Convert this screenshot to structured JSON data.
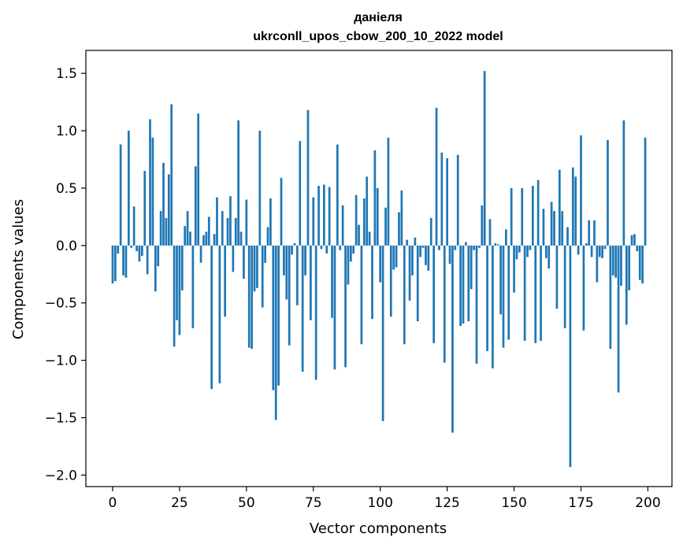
{
  "chart_data": {
    "type": "bar",
    "title": "даніеля",
    "subtitle": "ukrconll_upos_cbow_200_10_2022 model",
    "xlabel": "Vector components",
    "ylabel": "Components values",
    "xlim": [
      -10,
      209
    ],
    "ylim": [
      -2.1,
      1.7
    ],
    "xticks": [
      0,
      25,
      50,
      75,
      100,
      125,
      150,
      175,
      200
    ],
    "yticks": [
      1.5,
      1.0,
      0.5,
      0.0,
      -0.5,
      -1.0,
      -1.5,
      -2.0
    ],
    "ytick_labels": [
      "1.5",
      "1.0",
      "0.5",
      "0.0",
      "−0.5",
      "−1.0",
      "−1.5",
      "−2.0"
    ],
    "grid": false,
    "bar_color": "#1f77b4",
    "x": [
      0,
      1,
      2,
      3,
      4,
      5,
      6,
      7,
      8,
      9,
      10,
      11,
      12,
      13,
      14,
      15,
      16,
      17,
      18,
      19,
      20,
      21,
      22,
      23,
      24,
      25,
      26,
      27,
      28,
      29,
      30,
      31,
      32,
      33,
      34,
      35,
      36,
      37,
      38,
      39,
      40,
      41,
      42,
      43,
      44,
      45,
      46,
      47,
      48,
      49,
      50,
      51,
      52,
      53,
      54,
      55,
      56,
      57,
      58,
      59,
      60,
      61,
      62,
      63,
      64,
      65,
      66,
      67,
      68,
      69,
      70,
      71,
      72,
      73,
      74,
      75,
      76,
      77,
      78,
      79,
      80,
      81,
      82,
      83,
      84,
      85,
      86,
      87,
      88,
      89,
      90,
      91,
      92,
      93,
      94,
      95,
      96,
      97,
      98,
      99,
      100,
      101,
      102,
      103,
      104,
      105,
      106,
      107,
      108,
      109,
      110,
      111,
      112,
      113,
      114,
      115,
      116,
      117,
      118,
      119,
      120,
      121,
      122,
      123,
      124,
      125,
      126,
      127,
      128,
      129,
      130,
      131,
      132,
      133,
      134,
      135,
      136,
      137,
      138,
      139,
      140,
      141,
      142,
      143,
      144,
      145,
      146,
      147,
      148,
      149,
      150,
      151,
      152,
      153,
      154,
      155,
      156,
      157,
      158,
      159,
      160,
      161,
      162,
      163,
      164,
      165,
      166,
      167,
      168,
      169,
      170,
      171,
      172,
      173,
      174,
      175,
      176,
      177,
      178,
      179,
      180,
      181,
      182,
      183,
      184,
      185,
      186,
      187,
      188,
      189,
      190,
      191,
      192,
      193,
      194,
      195,
      196,
      197,
      198,
      199
    ],
    "values": [
      -0.33,
      -0.31,
      -0.07,
      0.88,
      -0.26,
      -0.28,
      1.0,
      -0.02,
      0.34,
      -0.05,
      -0.14,
      -0.09,
      0.65,
      -0.25,
      1.1,
      0.94,
      -0.4,
      -0.18,
      0.3,
      0.72,
      0.24,
      0.62,
      1.23,
      -0.88,
      -0.65,
      -0.78,
      -0.39,
      0.17,
      0.3,
      0.12,
      -0.72,
      0.69,
      1.15,
      -0.15,
      0.09,
      0.12,
      0.25,
      -1.25,
      0.1,
      0.42,
      -1.2,
      0.3,
      -0.62,
      0.24,
      0.43,
      -0.23,
      0.24,
      1.09,
      0.12,
      -0.29,
      0.4,
      -0.89,
      -0.9,
      -0.4,
      -0.37,
      1.0,
      -0.54,
      -0.15,
      0.16,
      0.41,
      -1.26,
      -1.52,
      -1.22,
      0.59,
      -0.26,
      -0.47,
      -0.87,
      -0.08,
      0.02,
      -0.52,
      0.91,
      -1.1,
      -0.26,
      1.18,
      -0.65,
      0.42,
      -1.17,
      0.52,
      -0.03,
      0.53,
      -0.07,
      0.51,
      -0.63,
      -1.08,
      0.88,
      -0.04,
      0.35,
      -1.06,
      -0.34,
      -0.14,
      -0.07,
      0.44,
      0.18,
      -0.86,
      0.41,
      0.6,
      0.12,
      -0.64,
      0.83,
      0.5,
      -0.32,
      -1.53,
      0.33,
      0.94,
      -0.62,
      -0.21,
      -0.19,
      0.29,
      0.48,
      -0.86,
      0.05,
      -0.48,
      -0.26,
      0.07,
      -0.66,
      -0.1,
      -0.02,
      -0.17,
      -0.22,
      0.24,
      -0.85,
      1.2,
      -0.04,
      0.81,
      -1.02,
      0.76,
      -0.16,
      -1.63,
      -0.04,
      0.79,
      -0.7,
      -0.68,
      0.03,
      -0.66,
      -0.38,
      -0.04,
      -1.03,
      -0.02,
      0.35,
      1.52,
      -0.92,
      0.23,
      -1.07,
      0.02,
      0.01,
      -0.6,
      -0.89,
      0.14,
      -0.82,
      0.5,
      -0.41,
      -0.12,
      -0.06,
      0.5,
      -0.83,
      -0.1,
      -0.04,
      0.52,
      -0.85,
      0.57,
      -0.83,
      0.32,
      -0.11,
      -0.2,
      0.38,
      0.3,
      -0.55,
      0.66,
      0.3,
      -0.72,
      0.16,
      -1.93,
      0.68,
      0.6,
      -0.08,
      0.96,
      -0.74,
      0.02,
      0.22,
      -0.1,
      0.22,
      -0.32,
      -0.1,
      -0.11,
      -0.03,
      0.92,
      -0.9,
      -0.26,
      -0.28,
      -1.28,
      -0.35,
      1.09,
      -0.69,
      -0.39,
      0.09,
      0.1,
      -0.05,
      -0.3,
      -0.33,
      0.94
    ]
  }
}
